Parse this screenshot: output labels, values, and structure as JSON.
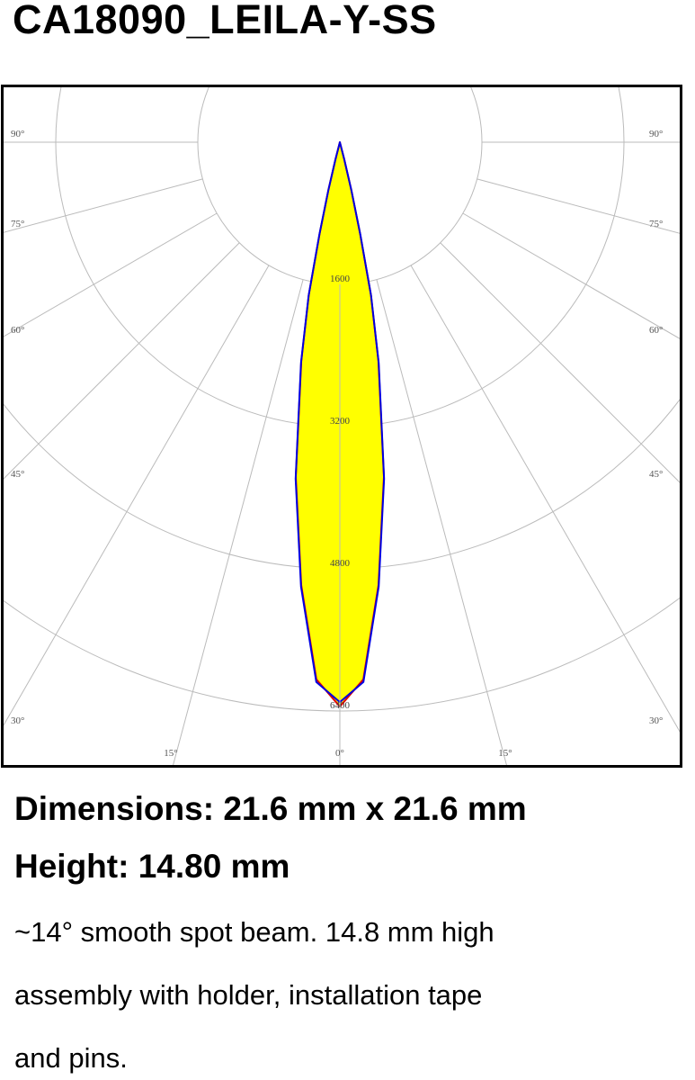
{
  "title": "CA18090_LEILA-Y-SS",
  "chart_data": {
    "type": "polar",
    "title": "",
    "radial_ticks": [
      1600,
      3200,
      4800,
      6400
    ],
    "radial_tick_labels": [
      "1600",
      "3200",
      "4800",
      "6400"
    ],
    "angle_tick_labels_left": [
      "90°",
      "75°",
      "60°",
      "45°",
      "30°",
      "15°"
    ],
    "angle_tick_labels_bottom": [
      "15°",
      "0°",
      "15°"
    ],
    "angle_ticks_deg": [
      0,
      15,
      30,
      45,
      60,
      75,
      90
    ],
    "grid": true,
    "fill_color": "#ffff00",
    "series": [
      {
        "color": "#e00000",
        "angles": [
          0,
          2.5,
          5,
          7.5,
          10,
          11.5,
          12.5,
          13.5,
          14.5,
          15.5
        ],
        "values": [
          6350,
          6050,
          5000,
          3800,
          2500,
          1750,
          1050,
          550,
          200,
          0
        ]
      },
      {
        "color": "#0000e0",
        "angles": [
          0,
          2.5,
          5,
          7.5,
          10,
          11.5,
          12.5,
          13.5,
          14.5,
          15.5
        ],
        "values": [
          6300,
          6080,
          5020,
          3820,
          2520,
          1760,
          1060,
          560,
          200,
          0
        ]
      }
    ]
  },
  "specs": {
    "dimensions": "Dimensions: 21.6 mm x 21.6 mm",
    "height": "Height: 14.80 mm",
    "description_lines": [
      "~14° smooth spot beam. 14.8 mm high",
      "assembly with holder, installation tape",
      "and pins."
    ]
  }
}
